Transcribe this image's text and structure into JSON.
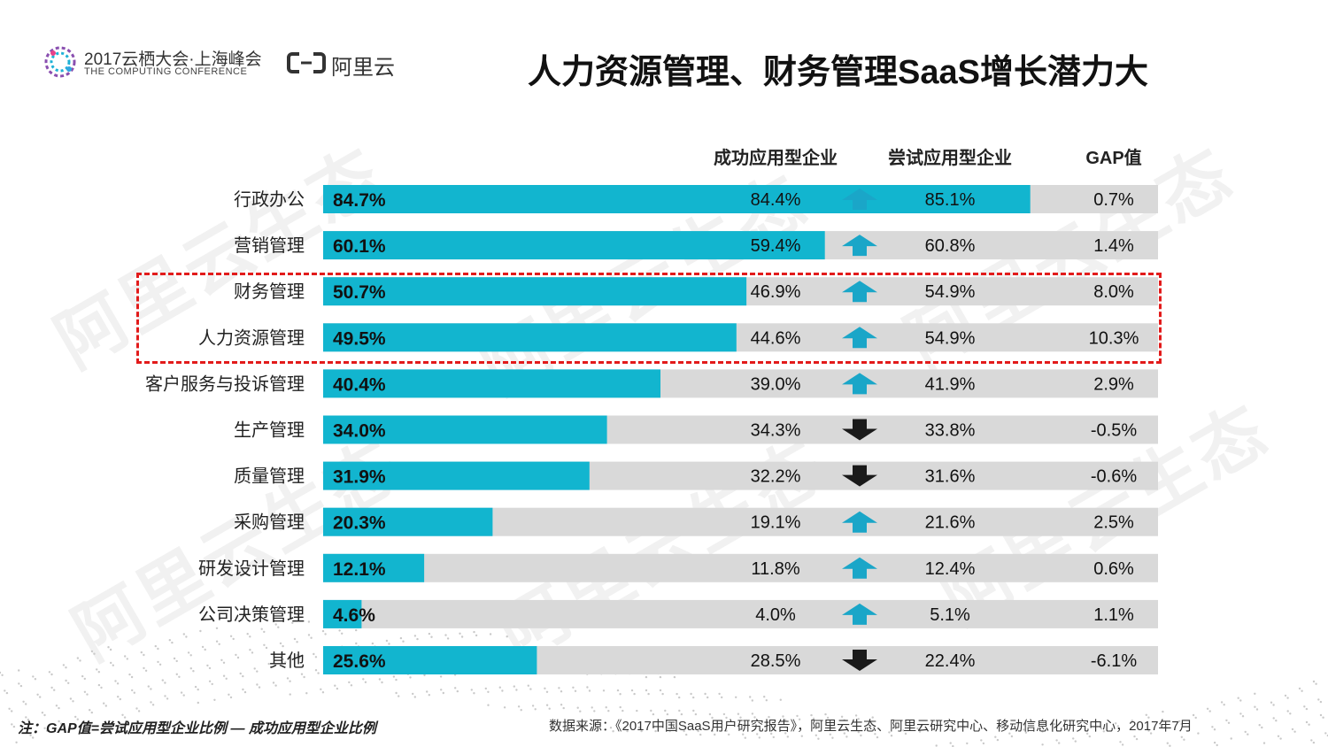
{
  "header": {
    "conference_name": "2017云栖大会·上海峰会",
    "conference_subtitle": "THE COMPUTING CONFERENCE",
    "company_name": "阿里云",
    "title": "人力资源管理、财务管理SaaS增长潜力大"
  },
  "watermark_text": "阿里云生态",
  "columns": {
    "success": "成功应用型企业",
    "trial": "尝试应用型企业",
    "gap": "GAP值"
  },
  "chart_data": {
    "type": "bar",
    "orientation": "horizontal",
    "title": "人力资源管理、财务管理SaaS增长潜力大",
    "xlim": [
      0,
      100
    ],
    "unit": "%",
    "categories": [
      "行政办公",
      "营销管理",
      "财务管理",
      "人力资源管理",
      "客户服务与投诉管理",
      "生产管理",
      "质量管理",
      "采购管理",
      "研发设计管理",
      "公司决策管理",
      "其他"
    ],
    "values": [
      84.7,
      60.1,
      50.7,
      49.5,
      40.4,
      34.0,
      31.9,
      20.3,
      12.1,
      4.6,
      25.6
    ],
    "value_labels": [
      "84.7%",
      "60.1%",
      "50.7%",
      "49.5%",
      "40.4%",
      "34.0%",
      "31.9%",
      "20.3%",
      "12.1%",
      "4.6%",
      "25.6%"
    ],
    "success_labels": [
      "84.4%",
      "59.4%",
      "46.9%",
      "44.6%",
      "39.0%",
      "34.3%",
      "32.2%",
      "19.1%",
      "11.8%",
      "4.0%",
      "28.5%"
    ],
    "trial_labels": [
      "85.1%",
      "60.8%",
      "54.9%",
      "54.9%",
      "41.9%",
      "33.8%",
      "31.6%",
      "21.6%",
      "12.4%",
      "5.1%",
      "22.4%"
    ],
    "gap_labels": [
      "0.7%",
      "1.4%",
      "8.0%",
      "10.3%",
      "2.9%",
      "-0.5%",
      "-0.6%",
      "2.5%",
      "0.6%",
      "1.1%",
      "-6.1%"
    ],
    "direction": [
      "up",
      "up",
      "up",
      "up",
      "up",
      "down",
      "down",
      "up",
      "up",
      "up",
      "down"
    ],
    "highlighted": [
      "财务管理",
      "人力资源管理"
    ],
    "colors": {
      "bar": "#12b5cf",
      "track": "#d9d9d9",
      "arrow_up": "#1aa6c8",
      "arrow_down": "#1a1a1a",
      "highlight": "#e21b1b"
    }
  },
  "footer": {
    "note": "注：GAP值=尝试应用型企业比例 — 成功应用型企业比例",
    "source": "数据来源：《2017中国SaaS用户研究报告》，阿里云生态、阿里云研究中心、移动信息化研究中心，2017年7月"
  }
}
